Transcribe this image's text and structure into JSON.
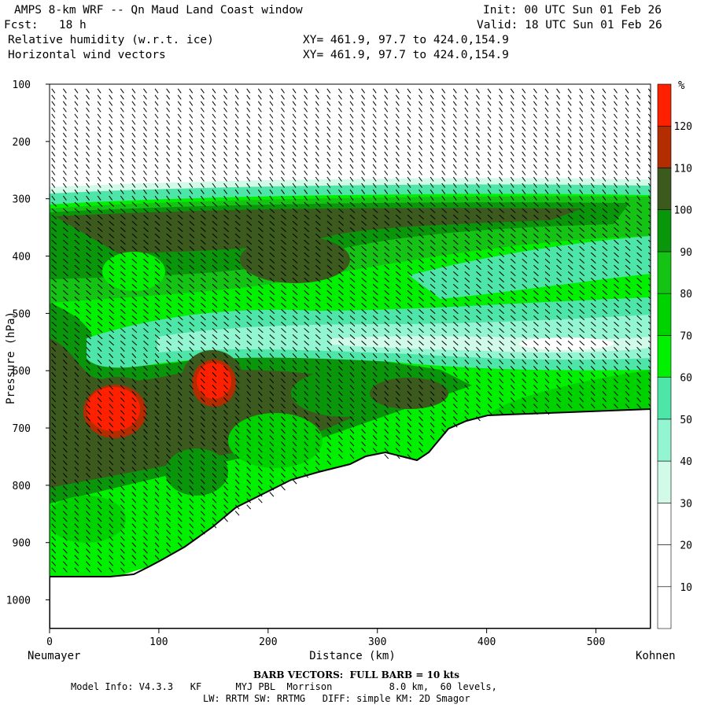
{
  "header": {
    "title": "AMPS 8-km WRF -- Qn Maud Land Coast window",
    "init": "Init: 00 UTC Sun 01 Feb 26",
    "fcst": "Fcst:   18 h",
    "valid": "Valid: 18 UTC Sun 01 Feb 26",
    "field1": "Relative humidity (w.r.t. ice)",
    "field1_xy": "XY= 461.9, 97.7 to 424.0,154.9",
    "field2": "Horizontal wind vectors",
    "field2_xy": "XY= 461.9, 97.7 to 424.0,154.9"
  },
  "footer": {
    "barb_line": "BARB VECTORS:  FULL BARB = 10 kts",
    "model_line1": "Model Info: V4.3.3   KF      MYJ PBL  Morrison          8.0 km,  60 levels,",
    "model_line2": "LW: RRTM SW: RRTMG   DIFF: simple KM: 2D Smagor"
  },
  "colors": {
    "white": "#ffffff",
    "c30": "#d2fae9",
    "c40": "#94f5d2",
    "c50": "#4de6a8",
    "c60": "#00f000",
    "c70": "#00d200",
    "c80": "#15c315",
    "c90": "#0a960a",
    "c100": "#006a00",
    "c100b": "#3c5a1e",
    "c110": "#b42d00",
    "c120": "#ff2000",
    "terrain": "#ffffff"
  },
  "chart_data": {
    "type": "heatmap",
    "title": "Relative humidity (w.r.t. ice)",
    "xlabel": "Distance (km)",
    "ylabel": "Pressure (hPa)",
    "xlim": [
      0,
      550
    ],
    "ylim": [
      1050,
      100
    ],
    "x_ticks": [
      "0",
      "100",
      "200",
      "300",
      "400",
      "500"
    ],
    "y_ticks": [
      "100",
      "200",
      "300",
      "400",
      "500",
      "600",
      "700",
      "800",
      "900",
      "1000"
    ],
    "x_start_label": "Neumayer",
    "x_end_label": "Kohnen",
    "colorbar": {
      "unit": "%",
      "levels": [
        "10",
        "20",
        "30",
        "40",
        "50",
        "60",
        "70",
        "80",
        "90",
        "100",
        "110",
        "120"
      ]
    },
    "terrain_surface": {
      "x_km": [
        0,
        30,
        60,
        90,
        100,
        130,
        150,
        170,
        200,
        240,
        280,
        290,
        320,
        340,
        350,
        380,
        400,
        450,
        500,
        550
      ],
      "p_hpa": [
        958,
        958,
        958,
        945,
        930,
        905,
        880,
        855,
        825,
        785,
        750,
        750,
        765,
        745,
        720,
        695,
        685,
        678,
        672,
        668
      ]
    },
    "rh_features": [
      {
        "name": "moist-max-left",
        "x_km": 60,
        "p_hpa": 665,
        "rh_pct": 120
      },
      {
        "name": "moist-max-mid",
        "x_km": 150,
        "p_hpa": 615,
        "rh_pct": 120
      },
      {
        "name": "dry-band",
        "x_km": 450,
        "p_hpa": 540,
        "rh_pct": 20
      },
      {
        "name": "cloud-top",
        "x_km": 300,
        "p_hpa": 290,
        "rh_pct": 30
      }
    ]
  }
}
